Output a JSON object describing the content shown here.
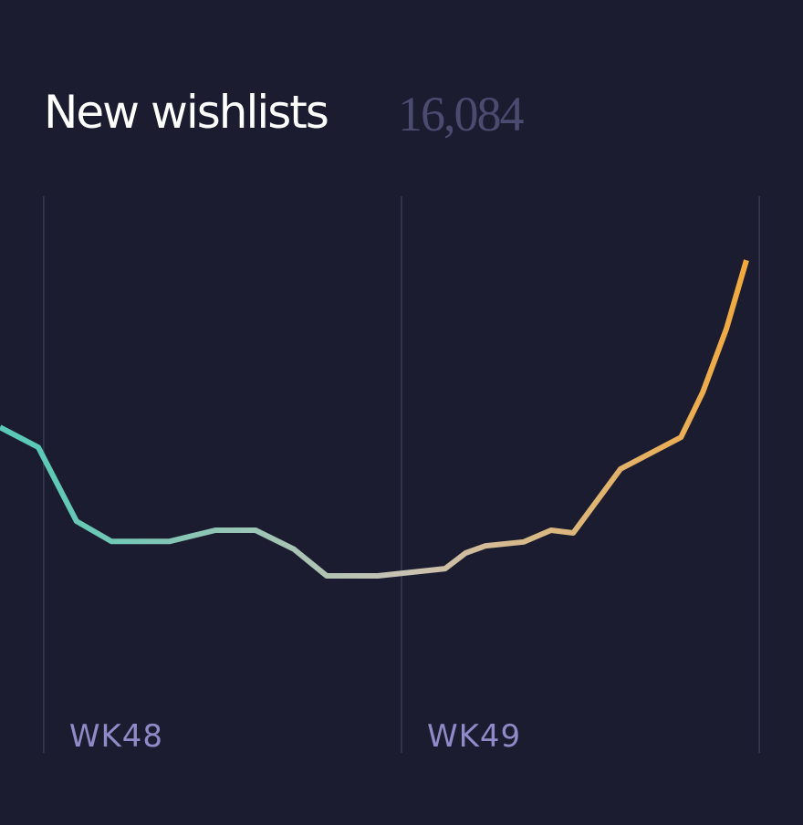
{
  "chart_data": {
    "type": "line",
    "title": "New wishlists",
    "total": "16,084",
    "x": [
      47.878,
      47.985,
      48.092,
      48.189,
      48.352,
      48.48,
      48.592,
      48.699,
      48.791,
      48.934,
      49.122,
      49.179,
      49.235,
      49.342,
      49.418,
      49.48,
      49.612,
      49.781,
      49.842,
      49.908,
      49.964
    ],
    "values": [
      58.5,
      54.9,
      41.6,
      38.0,
      38.0,
      40.0,
      40.0,
      36.6,
      31.8,
      31.8,
      33.1,
      35.9,
      37.2,
      37.9,
      40.0,
      39.5,
      51.0,
      56.7,
      64.8,
      76.2,
      88.5
    ],
    "colors": [
      "#5cc9b6",
      "#c8c2b4",
      "#f2a93f"
    ],
    "xlim": [
      47.878,
      50.122
    ],
    "ylim": [
      0,
      100
    ],
    "xticks": [
      {
        "value": 48,
        "label": "WK48"
      },
      {
        "value": 49,
        "label": "WK49"
      },
      {
        "value": 50,
        "label": null
      }
    ],
    "grid": true
  }
}
